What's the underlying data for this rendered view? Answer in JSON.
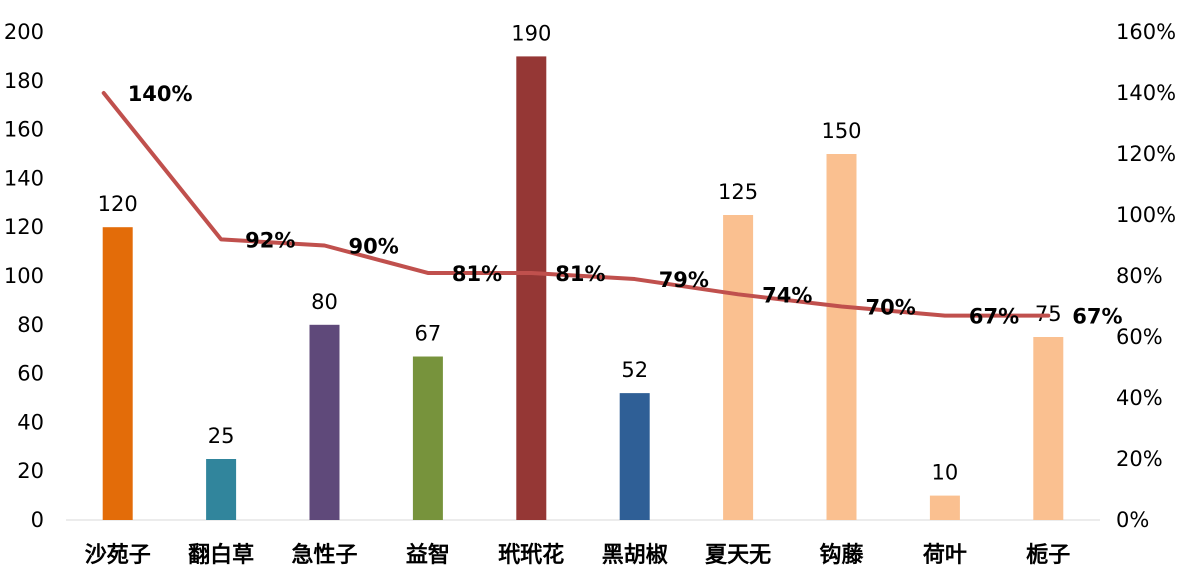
{
  "chart_data": {
    "type": "bar",
    "categories": [
      "沙苑子",
      "翻白草",
      "急性子",
      "益智",
      "玳玳花",
      "黑胡椒",
      "夏天无",
      "钩藤",
      "荷叶",
      "栀子"
    ],
    "series": [
      {
        "type": "bar",
        "axis": "left",
        "values": [
          120,
          25,
          80,
          67,
          190,
          52,
          125,
          150,
          10,
          75
        ],
        "value_labels": [
          "120",
          "25",
          "80",
          "67",
          "190",
          "52",
          "125",
          "150",
          "10",
          "75"
        ],
        "colors": [
          "#E36C09",
          "#31859C",
          "#5F497A",
          "#77933C",
          "#953735",
          "#2F5F96",
          "#FAC090",
          "#FAC090",
          "#FAC090",
          "#FAC090"
        ]
      },
      {
        "type": "line",
        "axis": "right",
        "values": [
          140,
          92,
          90,
          81,
          81,
          79,
          74,
          70,
          67,
          67
        ],
        "value_labels": [
          "140%",
          "92%",
          "90%",
          "81%",
          "81%",
          "79%",
          "74%",
          "70%",
          "67%",
          "67%"
        ],
        "color": "#C0504D"
      }
    ],
    "y_left": {
      "min": 0,
      "max": 200,
      "ticks": [
        "0",
        "20",
        "40",
        "60",
        "80",
        "100",
        "120",
        "140",
        "160",
        "180",
        "200"
      ]
    },
    "y_right": {
      "min": 0,
      "max": 160,
      "ticks": [
        "0%",
        "20%",
        "40%",
        "60%",
        "80%",
        "100%",
        "120%",
        "140%",
        "160%"
      ]
    },
    "grid": false,
    "legend": "none",
    "title": "",
    "xlabel": "",
    "ylabel": ""
  }
}
